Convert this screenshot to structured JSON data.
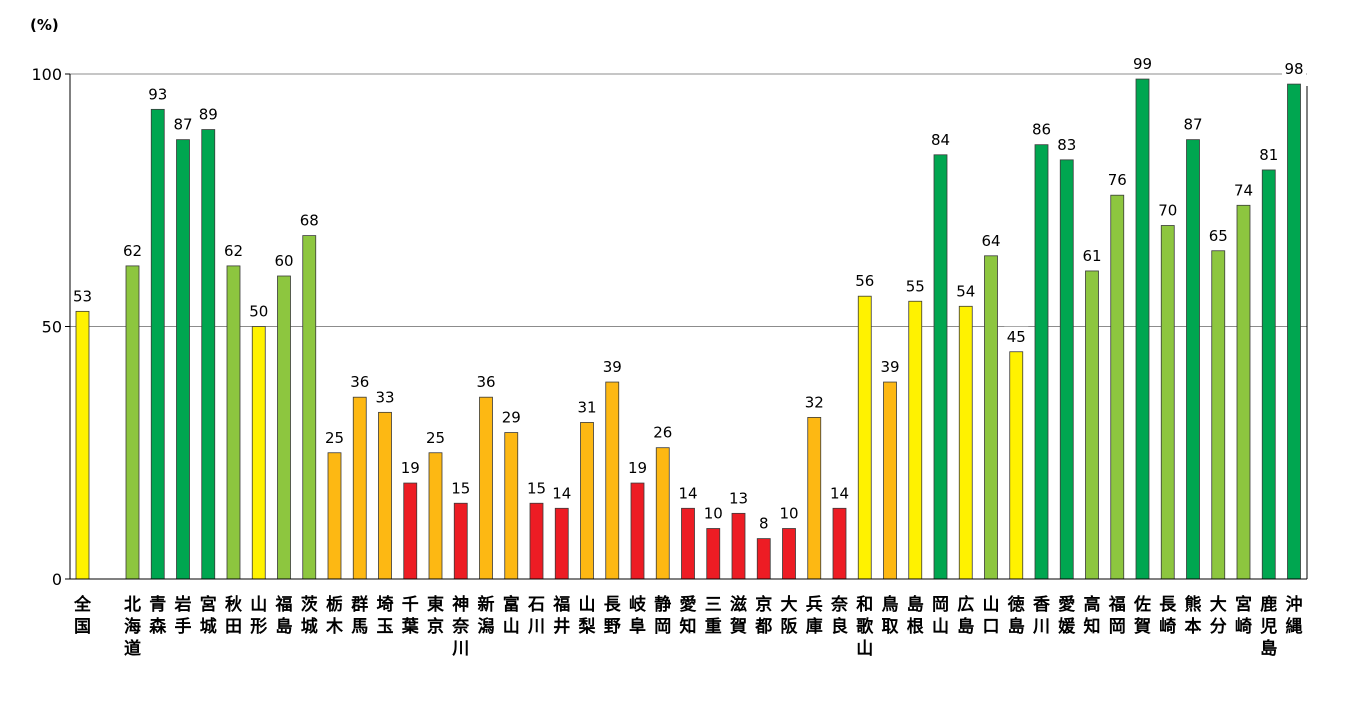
{
  "chart_data": {
    "type": "bar",
    "unit_label": "(%)",
    "ylim": [
      0,
      100
    ],
    "yticks": [
      0,
      50,
      100
    ],
    "grid": true,
    "legend": "none",
    "colors": {
      "dark_green": "#00A650",
      "light_green": "#8DC63F",
      "yellow": "#FFF200",
      "orange": "#FDB813",
      "red": "#ED1C24"
    },
    "categories": [
      "全国",
      "北海道",
      "青森",
      "岩手",
      "宮城",
      "秋田",
      "山形",
      "福島",
      "茨城",
      "栃木",
      "群馬",
      "埼玉",
      "千葉",
      "東京",
      "神奈川",
      "新潟",
      "富山",
      "石川",
      "福井",
      "山梨",
      "長野",
      "岐阜",
      "静岡",
      "愛知",
      "三重",
      "滋賀",
      "京都",
      "大阪",
      "兵庫",
      "奈良",
      "和歌山",
      "鳥取",
      "島根",
      "岡山",
      "広島",
      "山口",
      "徳島",
      "香川",
      "愛媛",
      "高知",
      "福岡",
      "佐賀",
      "長崎",
      "熊本",
      "大分",
      "宮崎",
      "鹿児島",
      "沖縄"
    ],
    "values": [
      53,
      62,
      93,
      87,
      89,
      62,
      50,
      60,
      68,
      25,
      36,
      33,
      19,
      25,
      15,
      36,
      29,
      15,
      14,
      31,
      39,
      19,
      26,
      14,
      10,
      13,
      8,
      10,
      32,
      14,
      56,
      39,
      55,
      84,
      54,
      64,
      45,
      86,
      83,
      61,
      76,
      99,
      70,
      87,
      65,
      74,
      81,
      98
    ],
    "bar_colors": [
      "yellow",
      "light_green",
      "dark_green",
      "dark_green",
      "dark_green",
      "light_green",
      "yellow",
      "light_green",
      "light_green",
      "orange",
      "orange",
      "orange",
      "red",
      "orange",
      "red",
      "orange",
      "orange",
      "red",
      "red",
      "orange",
      "orange",
      "red",
      "orange",
      "red",
      "red",
      "red",
      "red",
      "red",
      "orange",
      "red",
      "yellow",
      "orange",
      "yellow",
      "dark_green",
      "yellow",
      "light_green",
      "yellow",
      "dark_green",
      "dark_green",
      "light_green",
      "light_green",
      "dark_green",
      "light_green",
      "dark_green",
      "light_green",
      "light_green",
      "dark_green",
      "dark_green"
    ]
  }
}
